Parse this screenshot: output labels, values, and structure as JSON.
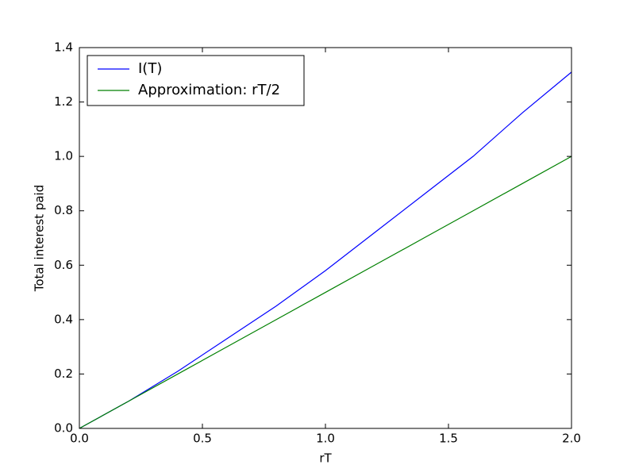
{
  "chart_data": {
    "type": "line",
    "xlabel": "rT",
    "ylabel": "Total interest paid",
    "x": [
      0,
      0.2,
      0.4,
      0.6,
      0.8,
      1.0,
      1.2,
      1.4,
      1.6,
      1.8,
      2.0
    ],
    "series": [
      {
        "name": "I(T)",
        "color": "#0000ff",
        "values": [
          0,
          0.1,
          0.21,
          0.33,
          0.45,
          0.58,
          0.72,
          0.86,
          1.0,
          1.16,
          1.31
        ]
      },
      {
        "name": "Approximation: rT/2",
        "color": "#008000",
        "values": [
          0,
          0.1,
          0.2,
          0.3,
          0.4,
          0.5,
          0.6,
          0.7,
          0.8,
          0.9,
          1.0
        ]
      }
    ],
    "xlim": [
      0,
      2
    ],
    "xticks": [
      {
        "value": 0,
        "label": "0.0"
      },
      0.5,
      {
        "value": 1,
        "label": "1.0"
      },
      1.5,
      {
        "value": 2,
        "label": "2.0"
      }
    ],
    "ylim": [
      0,
      1.4
    ],
    "yticks": [
      {
        "value": 0,
        "label": "0.0"
      },
      0.2,
      0.4,
      0.6,
      0.8,
      {
        "value": 1,
        "label": "1.0"
      },
      1.2,
      1.4
    ],
    "grid": false,
    "legend": "upper left"
  }
}
